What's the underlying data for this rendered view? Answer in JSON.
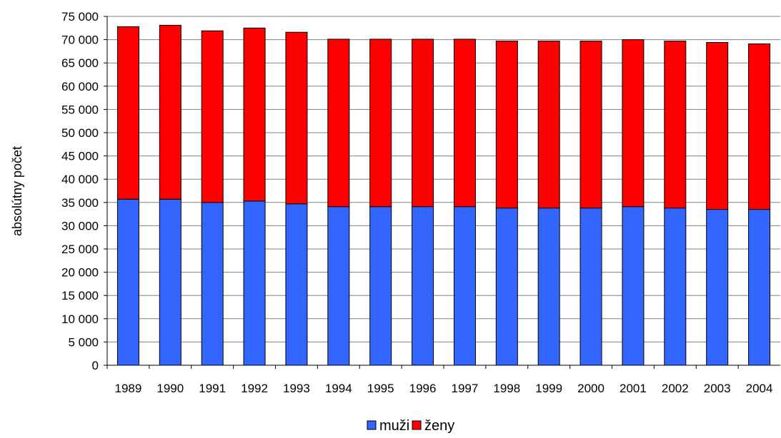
{
  "chart_data": {
    "type": "bar",
    "stacked": true,
    "title": "",
    "xlabel": "",
    "ylabel": "absolútny počet",
    "ylim": [
      0,
      75000
    ],
    "y_ticks": [
      0,
      5000,
      10000,
      15000,
      20000,
      25000,
      30000,
      35000,
      40000,
      45000,
      50000,
      55000,
      60000,
      65000,
      70000,
      75000
    ],
    "y_tick_labels": [
      "0",
      "5 000",
      "10 000",
      "15 000",
      "20 000",
      "25 000",
      "30 000",
      "35 000",
      "40 000",
      "45 000",
      "50 000",
      "55 000",
      "60 000",
      "65 000",
      "70 000",
      "75 000"
    ],
    "grid": true,
    "legend_position": "bottom",
    "categories": [
      "1989",
      "1990",
      "1991",
      "1992",
      "1993",
      "1994",
      "1995",
      "1996",
      "1997",
      "1998",
      "1999",
      "2000",
      "2001",
      "2002",
      "2003",
      "2004"
    ],
    "series": [
      {
        "name": "muži",
        "color": "#3366ff",
        "values": [
          35700,
          35700,
          35000,
          35300,
          34700,
          34100,
          34100,
          34100,
          34100,
          33800,
          33800,
          33800,
          34100,
          33800,
          33500,
          33500
        ]
      },
      {
        "name": "ženy",
        "color": "#ff0000",
        "values": [
          37100,
          37400,
          36900,
          37200,
          36900,
          36000,
          36000,
          36000,
          36000,
          35900,
          35900,
          35900,
          35900,
          35900,
          35900,
          35600
        ]
      }
    ]
  }
}
